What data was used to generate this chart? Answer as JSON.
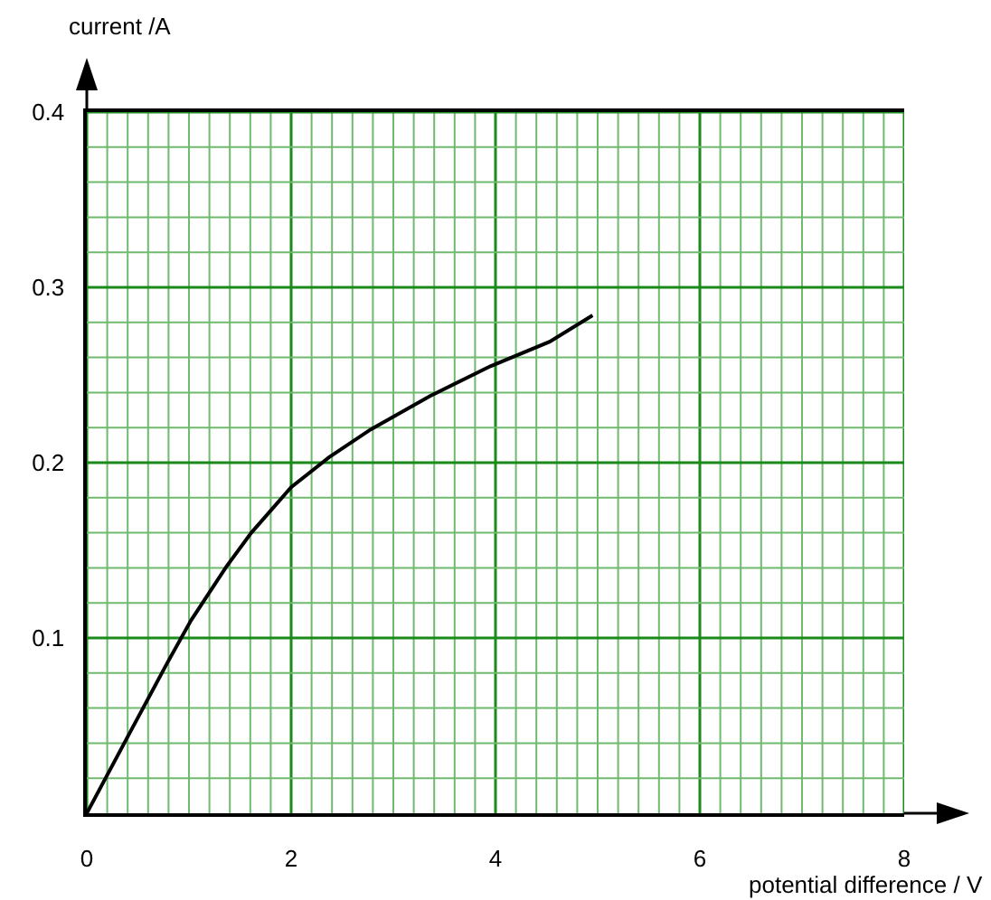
{
  "chart_data": {
    "type": "line",
    "xlabel": "potential difference / V",
    "ylabel": "current /A",
    "x": [
      0,
      0.44,
      0.79,
      1.02,
      1.37,
      1.61,
      2.0,
      2.37,
      2.78,
      3.36,
      3.95,
      4.53,
      4.95
    ],
    "series": [
      {
        "color": "#000000",
        "values": [
          0,
          0.048,
          0.086,
          0.11,
          0.141,
          0.16,
          0.186,
          0.203,
          0.219,
          0.238,
          0.255,
          0.269,
          0.284
        ]
      }
    ],
    "xlim": [
      0,
      8
    ],
    "xticks": [
      0,
      {
        "value": 0.2,
        "label": null
      },
      {
        "value": 0.4,
        "label": null
      },
      {
        "value": 0.6,
        "label": null
      },
      {
        "value": 0.8,
        "label": null
      },
      {
        "value": 1,
        "label": null
      },
      {
        "value": 1.2,
        "label": null
      },
      {
        "value": 1.4,
        "label": null
      },
      {
        "value": 1.6,
        "label": null
      },
      {
        "value": 1.8,
        "label": null
      },
      2,
      {
        "value": 2.2,
        "label": null
      },
      {
        "value": 2.4,
        "label": null
      },
      {
        "value": 2.6,
        "label": null
      },
      {
        "value": 2.8,
        "label": null
      },
      {
        "value": 3,
        "label": null
      },
      {
        "value": 3.2,
        "label": null
      },
      {
        "value": 3.4,
        "label": null
      },
      {
        "value": 3.6,
        "label": null
      },
      {
        "value": 3.8,
        "label": null
      },
      4,
      {
        "value": 4.2,
        "label": null
      },
      {
        "value": 4.4,
        "label": null
      },
      {
        "value": 4.6,
        "label": null
      },
      {
        "value": 4.8,
        "label": null
      },
      {
        "value": 5,
        "label": null
      },
      {
        "value": 5.2,
        "label": null
      },
      {
        "value": 5.4,
        "label": null
      },
      {
        "value": 5.6,
        "label": null
      },
      {
        "value": 5.8,
        "label": null
      },
      6,
      {
        "value": 6.2,
        "label": null
      },
      {
        "value": 6.4,
        "label": null
      },
      {
        "value": 6.6,
        "label": null
      },
      {
        "value": 6.8,
        "label": null
      },
      {
        "value": 7,
        "label": null
      },
      {
        "value": 7.2,
        "label": null
      },
      {
        "value": 7.4,
        "label": null
      },
      {
        "value": 7.6,
        "label": null
      },
      {
        "value": 7.8,
        "label": null
      },
      8
    ],
    "ylim": [
      0,
      0.4
    ],
    "yticks": [
      {
        "value": 0.02,
        "label": null
      },
      {
        "value": 0.04,
        "label": null
      },
      {
        "value": 0.06,
        "label": null
      },
      {
        "value": 0.08,
        "label": null
      },
      0.1,
      {
        "value": 0.12,
        "label": null
      },
      {
        "value": 0.14,
        "label": null
      },
      {
        "value": 0.16,
        "label": null
      },
      {
        "value": 0.18,
        "label": null
      },
      0.2,
      {
        "value": 0.22,
        "label": null
      },
      {
        "value": 0.24,
        "label": null
      },
      {
        "value": 0.26,
        "label": null
      },
      {
        "value": 0.28,
        "label": null
      },
      0.3,
      {
        "value": 0.32,
        "label": null
      },
      {
        "value": 0.34,
        "label": null
      },
      {
        "value": 0.36,
        "label": null
      },
      {
        "value": 0.38,
        "label": null
      },
      0.4
    ],
    "grid": true,
    "marker": "none",
    "line_style": "solid"
  }
}
